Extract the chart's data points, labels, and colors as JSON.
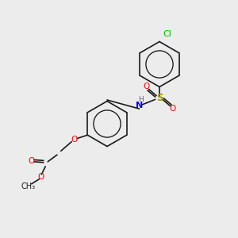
{
  "background_color": "#ececec",
  "bond_color": "#1a1a1a",
  "figsize": [
    3.0,
    3.0
  ],
  "dpi": 100,
  "atom_colors": {
    "N": "#0000ff",
    "O": "#ff0000",
    "S": "#999900",
    "Cl": "#00bb00",
    "C": "#1a1a1a",
    "H": "#666666"
  },
  "font_size": 7.5
}
